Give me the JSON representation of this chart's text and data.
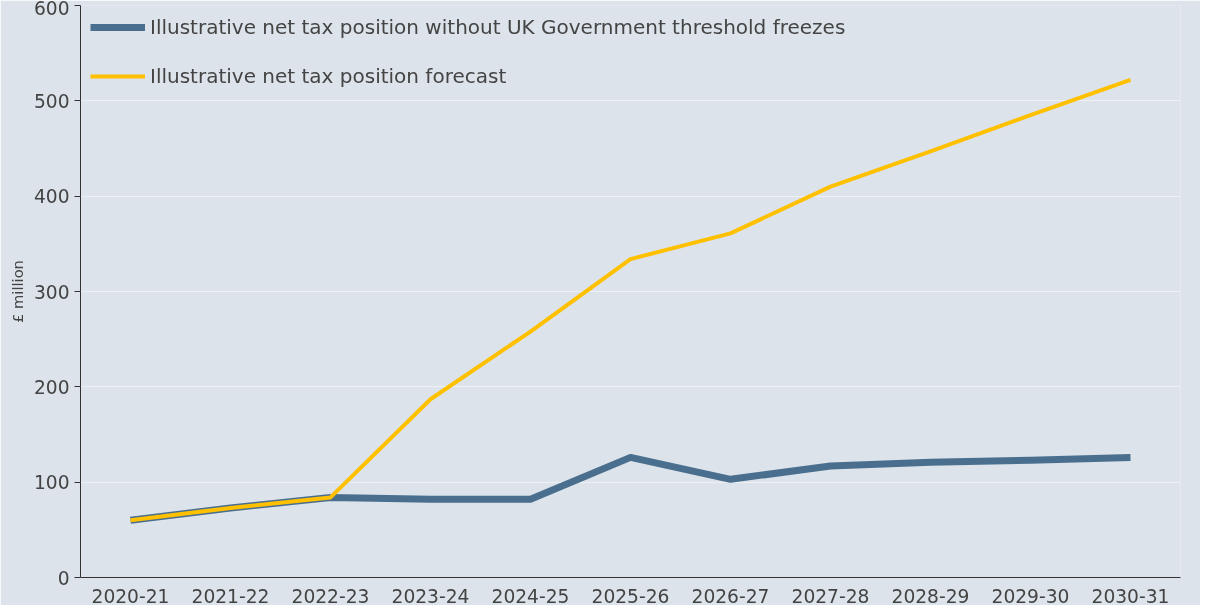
{
  "chart_data": {
    "type": "line",
    "ylabel": "£ million",
    "categories": [
      "2020-21",
      "2021-22",
      "2022-23",
      "2023-24",
      "2024-25",
      "2025-26",
      "2026-27",
      "2027-28",
      "2028-29",
      "2029-30",
      "2030-31"
    ],
    "series": [
      {
        "name": "Illustrative net tax position without UK Government threshold freezes",
        "color": "#4a6f8e",
        "values": [
          60,
          73,
          84,
          82,
          82,
          126,
          103,
          117,
          121,
          123,
          126
        ]
      },
      {
        "name": "Illustrative net tax position forecast",
        "color": "#ffc000",
        "values": [
          60,
          73,
          84,
          187,
          258,
          334,
          361,
          410,
          447,
          485,
          522
        ]
      }
    ],
    "ylim": [
      0,
      600
    ],
    "yticks": [
      0,
      100,
      200,
      300,
      400,
      500,
      600
    ],
    "grid": "y",
    "legend": "top left",
    "marker": "none",
    "line_style": "solid"
  }
}
